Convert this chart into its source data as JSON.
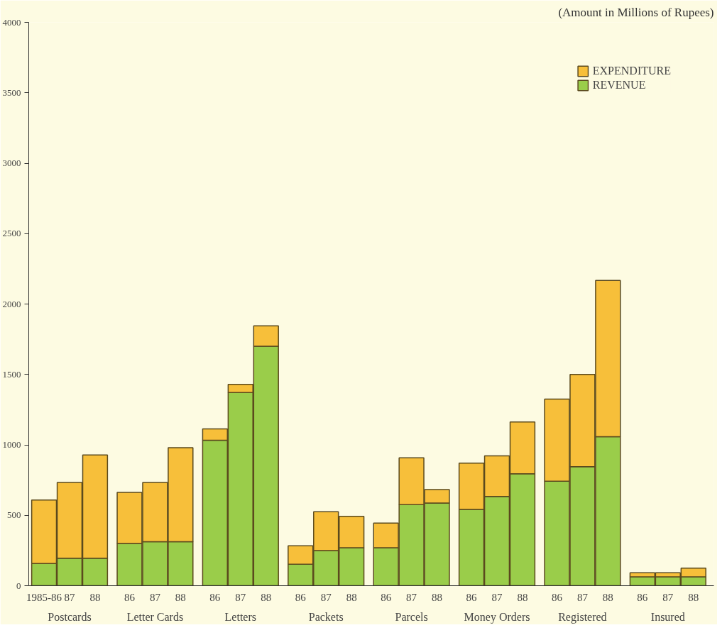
{
  "chart_data": {
    "type": "bar",
    "stacked": true,
    "subtitle": "(Amount in Millions of Rupees)",
    "categories": [
      "1985-86",
      "87",
      "88",
      "86",
      "87",
      "88",
      "86",
      "87",
      "88",
      "86",
      "87",
      "88",
      "86",
      "87",
      "88",
      "86",
      "87",
      "88",
      "86",
      "87",
      "88",
      "86",
      "87",
      "88"
    ],
    "annotations": [
      "Postcards",
      "Letter Cards",
      "Letters",
      "Packets",
      "Parcels",
      "Money Orders",
      "Registered",
      "Insured"
    ],
    "series": [
      {
        "name": "REVENUE",
        "color": "#9acd4a",
        "values": [
          158,
          195,
          195,
          300,
          312,
          312,
          1033,
          1372,
          1700,
          153,
          250,
          270,
          270,
          575,
          587,
          542,
          633,
          795,
          742,
          845,
          1058,
          63,
          63,
          63
        ]
      },
      {
        "name": "EXPENDITURE",
        "color": "#f7bf3a",
        "values": [
          450,
          538,
          733,
          362,
          421,
          668,
          80,
          58,
          145,
          130,
          275,
          222,
          175,
          333,
          96,
          328,
          289,
          368,
          583,
          655,
          1109,
          29,
          29,
          62
        ]
      }
    ],
    "ylim": [
      0,
      4000
    ],
    "yticks": [
      0,
      500,
      1000,
      1500,
      2000,
      2500,
      3000,
      3500,
      4000
    ],
    "grid": false,
    "legend": "top right"
  }
}
